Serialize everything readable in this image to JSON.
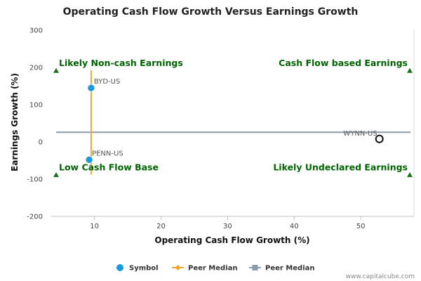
{
  "chart_data": {
    "type": "scatter",
    "title": "Operating Cash Flow Growth Versus Earnings Growth",
    "xlabel": "Operating Cash Flow Growth (%)",
    "ylabel": "Earnings Growth (%)",
    "xlim": [
      3.5,
      58
    ],
    "ylim": [
      -200,
      300
    ],
    "x_ticks": [
      10,
      20,
      30,
      40,
      50
    ],
    "y_ticks": [
      -200,
      -100,
      0,
      100,
      200,
      300
    ],
    "grid": false,
    "points": [
      {
        "label": "BYD-US",
        "x": 9.5,
        "y": 145,
        "color": "#1a9be0",
        "style": "filled"
      },
      {
        "label": "PENN-US",
        "x": 9.2,
        "y": -48,
        "color": "#1a9be0",
        "style": "filled"
      },
      {
        "label": "WYNN-US",
        "x": 52.8,
        "y": 8,
        "color": "#111111",
        "style": "open"
      }
    ],
    "peer_median_x": {
      "value": 9.5,
      "y_range": [
        -88,
        192
      ],
      "color": "#f5a623"
    },
    "peer_median_y": {
      "value": 26,
      "color": "#8a9aa8"
    },
    "quadrant_labels": [
      {
        "text": "Likely Non-cash Earnings",
        "position": "top-left",
        "marker_y": 192
      },
      {
        "text": "Cash Flow based Earnings",
        "position": "top-right",
        "marker_y": 192
      },
      {
        "text": "Low Cash Flow Base",
        "position": "bottom-left",
        "marker_y": -88
      },
      {
        "text": "Likely Undeclared Earnings",
        "position": "bottom-right",
        "marker_y": -88
      }
    ],
    "legend": {
      "placement": "bottom-center",
      "entries": [
        {
          "name": "Symbol",
          "type": "dot",
          "color": "#1a9be0"
        },
        {
          "name": "Peer Median",
          "type": "line-diamond",
          "color": "#f5a623"
        },
        {
          "name": "Peer Median",
          "type": "line-square",
          "color": "#8a9aa8"
        }
      ]
    },
    "credit": "www.capitalcube.com"
  }
}
